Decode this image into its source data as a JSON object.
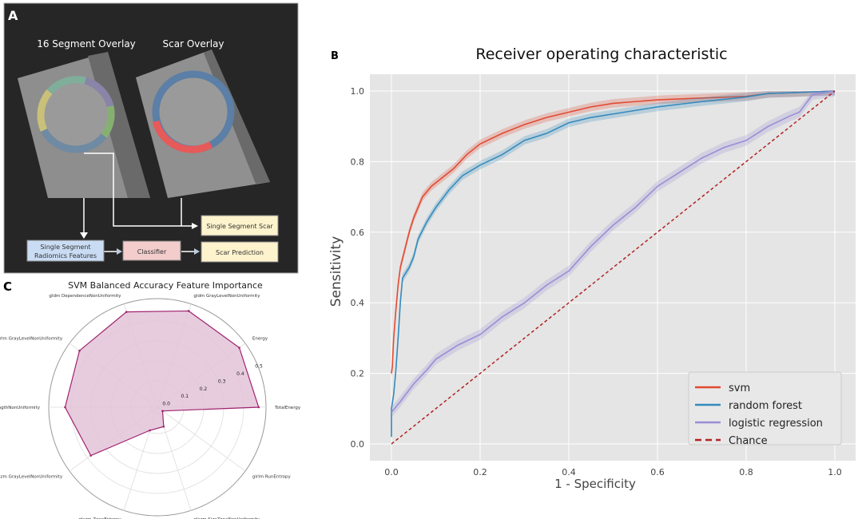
{
  "panels": {
    "a": {
      "letter": "A",
      "overlay_left_title": "16 Segment Overlay",
      "overlay_right_title": "Scar Overlay",
      "box_features_line1": "Single Segment",
      "box_features_line2": "Radiomics Features",
      "box_classifier": "Classifier",
      "box_scar": "Single Segment Scar",
      "box_prediction": "Scar Prediction",
      "colors": {
        "features_box": "#c9dcf3",
        "classifier_box": "#f3cccc",
        "output_box": "#fdf3cc",
        "background": "#262626"
      }
    },
    "b": {
      "letter": "B"
    },
    "c": {
      "letter": "C"
    }
  },
  "chart_data": [
    {
      "id": "roc",
      "type": "line",
      "title": "Receiver operating characteristic",
      "xlabel": "1 - Specificity",
      "ylabel": "Sensitivity",
      "xlim": [
        -0.05,
        1.05
      ],
      "ylim": [
        -0.05,
        1.05
      ],
      "xticks": [
        "0.0",
        "0.2",
        "0.4",
        "0.6",
        "0.8",
        "1.0"
      ],
      "yticks": [
        "0.0",
        "0.2",
        "0.4",
        "0.6",
        "0.8",
        "1.0"
      ],
      "grid": true,
      "legend_position": "lower-right",
      "series": [
        {
          "name": "svm",
          "color": "#e24a33",
          "band": 0.012,
          "x": [
            0,
            0.002,
            0.005,
            0.01,
            0.015,
            0.02,
            0.03,
            0.04,
            0.05,
            0.06,
            0.07,
            0.09,
            0.11,
            0.14,
            0.17,
            0.2,
            0.25,
            0.3,
            0.35,
            0.4,
            0.45,
            0.5,
            0.55,
            0.6,
            0.7,
            0.8,
            0.85,
            0.9,
            1
          ],
          "y": [
            0.2,
            0.22,
            0.3,
            0.38,
            0.45,
            0.5,
            0.55,
            0.6,
            0.64,
            0.67,
            0.7,
            0.73,
            0.75,
            0.78,
            0.82,
            0.85,
            0.88,
            0.905,
            0.925,
            0.94,
            0.955,
            0.965,
            0.97,
            0.975,
            0.98,
            0.985,
            0.993,
            0.995,
            1
          ]
        },
        {
          "name": "random forest",
          "color": "#348abd",
          "band": 0.012,
          "x": [
            0,
            0,
            0.005,
            0.01,
            0.015,
            0.02,
            0.025,
            0.04,
            0.05,
            0.06,
            0.08,
            0.1,
            0.13,
            0.16,
            0.2,
            0.25,
            0.3,
            0.35,
            0.4,
            0.45,
            0.5,
            0.6,
            0.7,
            0.8,
            0.85,
            0.9,
            1
          ],
          "y": [
            0.02,
            0.1,
            0.14,
            0.21,
            0.3,
            0.4,
            0.47,
            0.5,
            0.53,
            0.58,
            0.63,
            0.67,
            0.72,
            0.76,
            0.79,
            0.82,
            0.86,
            0.88,
            0.91,
            0.925,
            0.935,
            0.955,
            0.97,
            0.983,
            0.993,
            0.995,
            1
          ]
        },
        {
          "name": "logistic regression",
          "color": "#988ed5",
          "band": 0.015,
          "x": [
            0,
            0.02,
            0.05,
            0.08,
            0.1,
            0.15,
            0.2,
            0.25,
            0.3,
            0.35,
            0.4,
            0.45,
            0.5,
            0.55,
            0.6,
            0.65,
            0.7,
            0.75,
            0.8,
            0.85,
            0.9,
            0.92,
            0.95,
            1
          ],
          "y": [
            0.09,
            0.12,
            0.17,
            0.21,
            0.24,
            0.28,
            0.31,
            0.36,
            0.4,
            0.45,
            0.49,
            0.56,
            0.62,
            0.67,
            0.73,
            0.77,
            0.81,
            0.84,
            0.86,
            0.9,
            0.93,
            0.94,
            0.99,
            1
          ]
        },
        {
          "name": "Chance",
          "color": "#b22222",
          "dashed": true,
          "x": [
            0,
            1
          ],
          "y": [
            0,
            1
          ]
        }
      ]
    },
    {
      "id": "radar",
      "type": "radar",
      "title": "SVM Balanced Accuracy Feature Importance",
      "rlim": [
        0,
        0.5
      ],
      "rticks": [
        "0.0",
        "0.1",
        "0.2",
        "0.3",
        "0.4",
        "0.5"
      ],
      "color": "#a0226e",
      "fill": "#e3c3d8",
      "categories": [
        "TotalEnergy",
        "Energy",
        "gldm GrayLevelNonUniformity",
        "gldm DependenceNonUniformity",
        "glrlm GrayLevelNonUniformity",
        "glrlm RunLengthNonUniformity",
        "glszm GrayLevelNonUniformity",
        "glszm ZoneEntropy",
        "glszm SizeZoneNonUniformity",
        "glrlm RunEntropy"
      ],
      "values": [
        0.475,
        0.475,
        0.475,
        0.47,
        0.45,
        0.43,
        0.38,
        0.09,
        0.07,
        0.0
      ]
    }
  ]
}
